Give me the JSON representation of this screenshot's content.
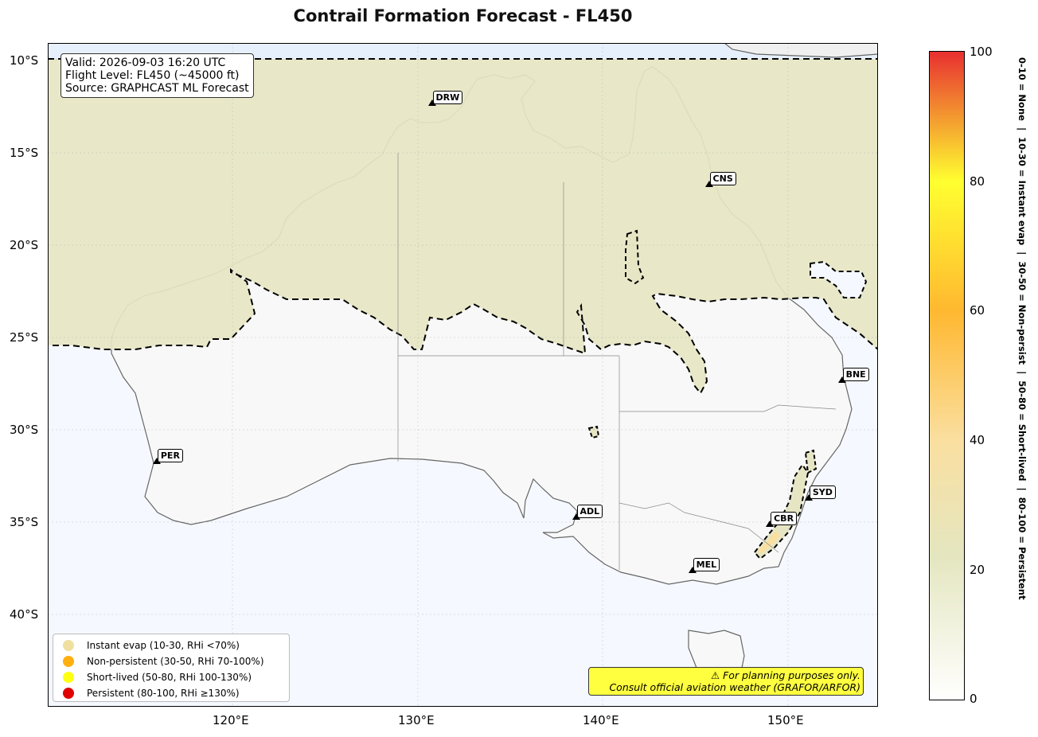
{
  "title": "Contrail Formation Forecast - FL450",
  "info_box": {
    "lines": [
      "Valid: 2026-09-03 16:20 UTC",
      "Flight Level: FL450 (~45000 ft)",
      "Source: GRAPHCAST ML Forecast"
    ]
  },
  "map": {
    "lon_ticks": [
      "120°E",
      "130°E",
      "140°E",
      "150°E"
    ],
    "lat_ticks": [
      "10°S",
      "15°S",
      "20°S",
      "25°S",
      "30°S",
      "35°S",
      "40°S"
    ],
    "cities": [
      {
        "code": "DRW",
        "lon": 130.8,
        "lat": -12.5
      },
      {
        "code": "CNS",
        "lon": 145.8,
        "lat": -16.9
      },
      {
        "code": "BNE",
        "lon": 153.0,
        "lat": -27.5
      },
      {
        "code": "PER",
        "lon": 115.9,
        "lat": -31.9
      },
      {
        "code": "ADL",
        "lon": 138.6,
        "lat": -34.9
      },
      {
        "code": "SYD",
        "lon": 151.2,
        "lat": -33.9
      },
      {
        "code": "CBR",
        "lon": 149.1,
        "lat": -35.3
      },
      {
        "code": "MEL",
        "lon": 144.9,
        "lat": -37.8
      }
    ]
  },
  "legend": {
    "items": [
      {
        "label": "Instant evap (10-30, RHi <70%)",
        "color": "#f0e0a0"
      },
      {
        "label": "Non-persistent (30-50, RHi 70-100%)",
        "color": "#ffb010"
      },
      {
        "label": "Short-lived (50-80, RHi 100-130%)",
        "color": "#ffff10"
      },
      {
        "label": "Persistent (80-100, RHi ≥130%)",
        "color": "#e00000"
      }
    ]
  },
  "disclaimer": {
    "line1": "⚠ For planning purposes only.",
    "line2": "Consult official aviation weather (GRAFOR/ARFOR)",
    "color": "#ffff40"
  },
  "colorbar": {
    "ticks": [
      "0",
      "20",
      "40",
      "60",
      "80",
      "100"
    ],
    "label": "0-10 = None  |  10-30 = Instant evap  |  30-50 = Non-persist  |  50-80 = Short-lived  |  80-100 = Persistent"
  },
  "colors": {
    "ocean": "#f5f9ff",
    "land": "#f8f8f8",
    "contrail_zone": "#e6e6c4",
    "colorbar_stops": [
      "#fffffe",
      "#e4e6c0",
      "#fadfa0",
      "#ffb830",
      "#ffff30",
      "#e83030"
    ]
  }
}
